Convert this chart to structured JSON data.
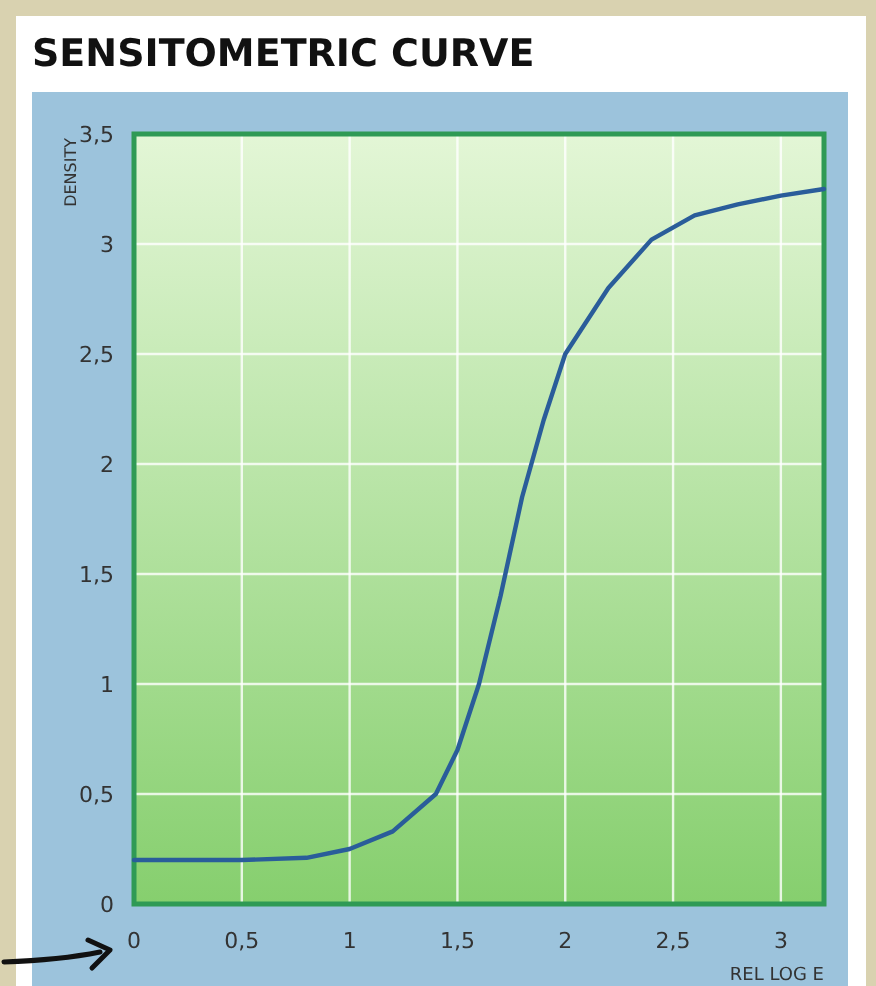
{
  "chart_data": {
    "type": "line",
    "title": "SENSITOMETRIC CURVE",
    "xlabel": "REL LOG E",
    "ylabel": "DENSITY",
    "x": [
      0,
      0.5,
      0.8,
      1,
      1.2,
      1.4,
      1.5,
      1.6,
      1.7,
      1.8,
      1.9,
      2.0,
      2.2,
      2.4,
      2.6,
      2.8,
      3.0,
      3.2
    ],
    "series": [
      {
        "color": "#2a5d9a",
        "values": [
          0.2,
          0.2,
          0.21,
          0.25,
          0.33,
          0.5,
          0.7,
          1.0,
          1.4,
          1.85,
          2.2,
          2.5,
          2.8,
          3.02,
          3.13,
          3.18,
          3.22,
          3.25
        ]
      }
    ],
    "xlim": [
      0,
      3.2
    ],
    "ylim": [
      0,
      3.5
    ],
    "xticks": [
      0,
      {
        "value": 0.5,
        "label": "0,5"
      },
      1,
      {
        "value": 1.5,
        "label": "1,5"
      },
      2,
      {
        "value": 2.5,
        "label": "2,5"
      },
      3
    ],
    "yticks": [
      0,
      {
        "value": 0.5,
        "label": "0,5"
      },
      1,
      {
        "value": 1.5,
        "label": "1,5"
      },
      2,
      {
        "value": 2.5,
        "label": "2,5"
      },
      3,
      {
        "value": 3.5,
        "label": "3,5"
      }
    ],
    "grid": true,
    "marker": "none",
    "line_style": "solid"
  }
}
